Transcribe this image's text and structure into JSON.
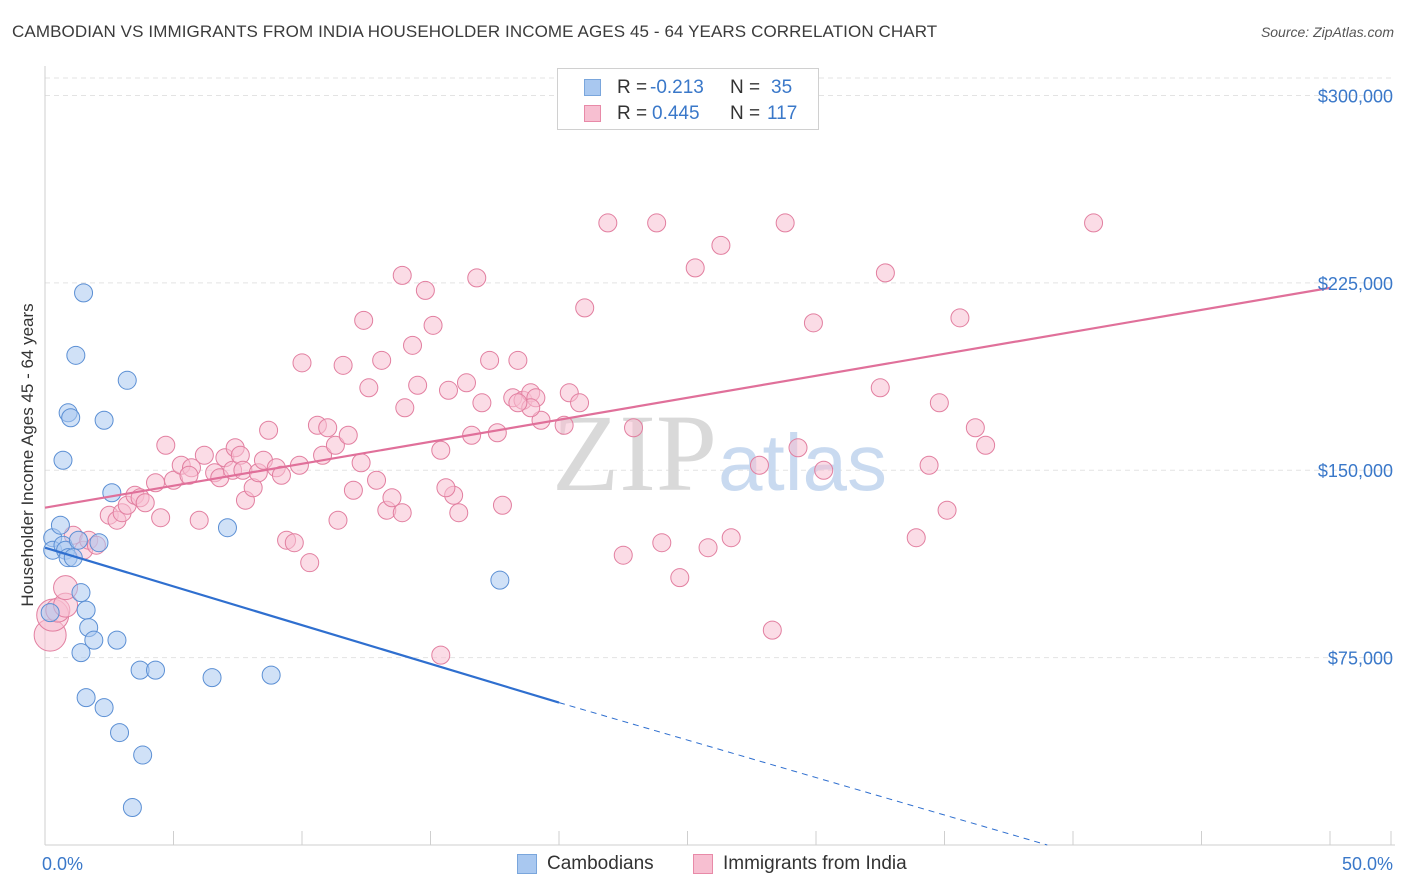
{
  "title": "CAMBODIAN VS IMMIGRANTS FROM INDIA HOUSEHOLDER INCOME AGES 45 - 64 YEARS CORRELATION CHART",
  "source": "Source: ZipAtlas.com",
  "watermark": {
    "zip": "ZIP",
    "atlas": "atlas"
  },
  "stats": [
    {
      "r_label": "R = ",
      "r_value": "-0.213",
      "n_label": "N = ",
      "n_value": "35",
      "color": "#a9c8f0",
      "border": "#7aa6dc"
    },
    {
      "r_label": "R = ",
      "r_value": "0.445",
      "n_label": "N = ",
      "n_value": "117",
      "color": "#f7bfd1",
      "border": "#e88aa8"
    }
  ],
  "legend": [
    {
      "label": "Cambodians",
      "color": "#a9c8f0",
      "border": "#7aa6dc"
    },
    {
      "label": "Immigrants from India",
      "color": "#f7bfd1",
      "border": "#e88aa8"
    }
  ],
  "chart_data": {
    "type": "scatter",
    "title": "CAMBODIAN VS IMMIGRANTS FROM INDIA HOUSEHOLDER INCOME AGES 45 - 64 YEARS CORRELATION CHART",
    "xlabel": "",
    "ylabel": "Householder Income Ages 45 - 64 years",
    "xlim": [
      0,
      50
    ],
    "ylim": [
      0,
      310000
    ],
    "x_tick_labels": [
      "0.0%",
      "50.0%"
    ],
    "y_ticks": [
      {
        "value": 75000,
        "label": "$75,000"
      },
      {
        "value": 150000,
        "label": "$150,000"
      },
      {
        "value": 225000,
        "label": "$225,000"
      },
      {
        "value": 300000,
        "label": "$300,000"
      }
    ],
    "series": [
      {
        "name": "Cambodians",
        "color": "#a9c8f0",
        "stroke": "#5b8fd4",
        "trend_color": "#2f6fcf",
        "trend": {
          "x0": 0,
          "y0": 119000,
          "x1": 20,
          "y1": 57000,
          "dash_to_x": 39,
          "dash_to_y": 0
        },
        "points": [
          [
            0.3,
            123000
          ],
          [
            0.3,
            118000
          ],
          [
            0.2,
            93000
          ],
          [
            0.6,
            128000
          ],
          [
            0.7,
            120000
          ],
          [
            0.8,
            118000
          ],
          [
            0.9,
            115000
          ],
          [
            1.1,
            115000
          ],
          [
            1.3,
            122000
          ],
          [
            0.7,
            154000
          ],
          [
            0.9,
            173000
          ],
          [
            1.0,
            171000
          ],
          [
            1.2,
            196000
          ],
          [
            1.5,
            221000
          ],
          [
            1.6,
            94000
          ],
          [
            1.4,
            101000
          ],
          [
            1.7,
            87000
          ],
          [
            1.9,
            82000
          ],
          [
            1.4,
            77000
          ],
          [
            2.3,
            170000
          ],
          [
            2.6,
            141000
          ],
          [
            2.8,
            82000
          ],
          [
            3.2,
            186000
          ],
          [
            3.7,
            70000
          ],
          [
            4.3,
            70000
          ],
          [
            1.6,
            59000
          ],
          [
            2.3,
            55000
          ],
          [
            2.9,
            45000
          ],
          [
            3.8,
            36000
          ],
          [
            3.4,
            15000
          ],
          [
            6.5,
            67000
          ],
          [
            7.1,
            127000
          ],
          [
            8.8,
            68000
          ],
          [
            17.7,
            106000
          ],
          [
            2.1,
            121000
          ]
        ]
      },
      {
        "name": "Immigrants from India",
        "color": "#f7bfd1",
        "stroke": "#e27fa0",
        "trend_color": "#e0709a",
        "trend": {
          "x0": 0,
          "y0": 135000,
          "x1": 50,
          "y1": 223000
        },
        "points": [
          [
            0.2,
            84000
          ],
          [
            0.3,
            92000
          ],
          [
            0.5,
            94000
          ],
          [
            0.8,
            96000
          ],
          [
            0.8,
            103000
          ],
          [
            1.1,
            124000
          ],
          [
            1.5,
            118000
          ],
          [
            1.7,
            122000
          ],
          [
            2.0,
            120000
          ],
          [
            2.5,
            132000
          ],
          [
            2.8,
            130000
          ],
          [
            3.0,
            133000
          ],
          [
            3.2,
            136000
          ],
          [
            3.5,
            140000
          ],
          [
            3.7,
            139000
          ],
          [
            3.9,
            137000
          ],
          [
            4.3,
            145000
          ],
          [
            4.5,
            131000
          ],
          [
            4.7,
            160000
          ],
          [
            5.0,
            146000
          ],
          [
            5.3,
            152000
          ],
          [
            5.7,
            151000
          ],
          [
            5.6,
            148000
          ],
          [
            6.0,
            130000
          ],
          [
            6.2,
            156000
          ],
          [
            6.6,
            149000
          ],
          [
            6.8,
            147000
          ],
          [
            7.0,
            155000
          ],
          [
            7.3,
            150000
          ],
          [
            7.4,
            159000
          ],
          [
            7.6,
            156000
          ],
          [
            7.7,
            150000
          ],
          [
            7.8,
            138000
          ],
          [
            8.1,
            143000
          ],
          [
            8.3,
            149000
          ],
          [
            8.5,
            154000
          ],
          [
            8.7,
            166000
          ],
          [
            9.0,
            151000
          ],
          [
            9.2,
            148000
          ],
          [
            9.4,
            122000
          ],
          [
            9.7,
            121000
          ],
          [
            9.9,
            152000
          ],
          [
            10.0,
            193000
          ],
          [
            10.3,
            113000
          ],
          [
            10.6,
            168000
          ],
          [
            10.8,
            156000
          ],
          [
            11.0,
            167000
          ],
          [
            11.3,
            160000
          ],
          [
            11.4,
            130000
          ],
          [
            11.6,
            192000
          ],
          [
            11.8,
            164000
          ],
          [
            12.0,
            142000
          ],
          [
            12.3,
            153000
          ],
          [
            12.4,
            210000
          ],
          [
            12.6,
            183000
          ],
          [
            12.9,
            146000
          ],
          [
            13.1,
            194000
          ],
          [
            13.3,
            134000
          ],
          [
            13.5,
            139000
          ],
          [
            13.9,
            133000
          ],
          [
            13.9,
            228000
          ],
          [
            14.0,
            175000
          ],
          [
            14.3,
            200000
          ],
          [
            14.5,
            184000
          ],
          [
            14.8,
            222000
          ],
          [
            15.1,
            208000
          ],
          [
            15.4,
            158000
          ],
          [
            15.4,
            76000
          ],
          [
            15.7,
            182000
          ],
          [
            15.9,
            140000
          ],
          [
            15.6,
            143000
          ],
          [
            16.1,
            133000
          ],
          [
            16.4,
            185000
          ],
          [
            16.6,
            164000
          ],
          [
            16.8,
            227000
          ],
          [
            17.0,
            177000
          ],
          [
            17.3,
            194000
          ],
          [
            17.6,
            165000
          ],
          [
            17.8,
            136000
          ],
          [
            18.2,
            179000
          ],
          [
            18.4,
            194000
          ],
          [
            18.6,
            178000
          ],
          [
            18.9,
            181000
          ],
          [
            19.1,
            179000
          ],
          [
            19.3,
            170000
          ],
          [
            18.9,
            175000
          ],
          [
            18.4,
            177000
          ],
          [
            20.2,
            168000
          ],
          [
            20.4,
            181000
          ],
          [
            20.8,
            177000
          ],
          [
            21.0,
            215000
          ],
          [
            21.9,
            249000
          ],
          [
            22.5,
            116000
          ],
          [
            23.8,
            249000
          ],
          [
            22.9,
            167000
          ],
          [
            24.0,
            121000
          ],
          [
            24.7,
            107000
          ],
          [
            25.3,
            231000
          ],
          [
            25.8,
            119000
          ],
          [
            26.3,
            240000
          ],
          [
            26.7,
            123000
          ],
          [
            27.8,
            152000
          ],
          [
            28.3,
            86000
          ],
          [
            28.8,
            249000
          ],
          [
            29.3,
            159000
          ],
          [
            29.9,
            209000
          ],
          [
            30.3,
            150000
          ],
          [
            32.5,
            183000
          ],
          [
            32.7,
            229000
          ],
          [
            33.9,
            123000
          ],
          [
            34.4,
            152000
          ],
          [
            34.8,
            177000
          ],
          [
            35.1,
            134000
          ],
          [
            35.6,
            211000
          ],
          [
            36.2,
            167000
          ],
          [
            36.6,
            160000
          ],
          [
            40.8,
            249000
          ]
        ]
      }
    ]
  }
}
